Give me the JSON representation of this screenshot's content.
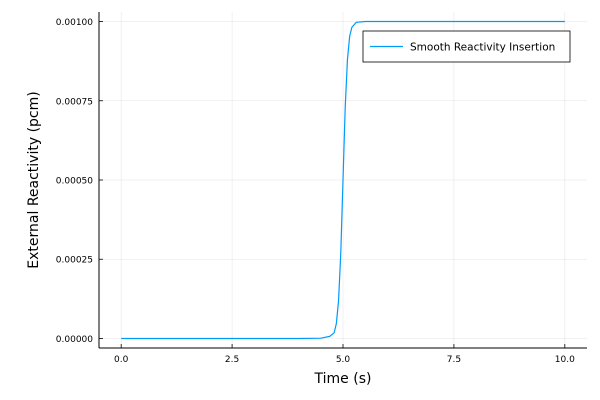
{
  "chart_data": {
    "type": "line",
    "title": "",
    "xlabel": "Time (s)",
    "ylabel": "External Reactivity (pcm)",
    "xlim": [
      -0.5,
      10.5
    ],
    "ylim": [
      -3e-05,
      0.00103
    ],
    "xticks": [
      0,
      2.5,
      5,
      7.5,
      10
    ],
    "xtick_labels": [
      "0.0",
      "2.5",
      "5.0",
      "7.5",
      "10.0"
    ],
    "yticks": [
      0,
      0.00025,
      0.0005,
      0.00075,
      0.001
    ],
    "ytick_labels": [
      "0.00000",
      "0.00025",
      "0.00050",
      "0.00075",
      "0.00100"
    ],
    "grid": true,
    "legend_position": "top-right",
    "series": [
      {
        "name": "Smooth Reactivity Insertion",
        "color": "#009AFA",
        "x": [
          0,
          1,
          2,
          3,
          4,
          4.5,
          4.7,
          4.8,
          4.85,
          4.9,
          4.95,
          5.0,
          5.05,
          5.1,
          5.15,
          5.2,
          5.3,
          5.5,
          6,
          7,
          8,
          9,
          10
        ],
        "y": [
          0,
          0,
          0,
          0,
          0,
          1e-06,
          6.7e-06,
          1.8e-05,
          4.7e-05,
          0.00012,
          0.00027,
          0.0005,
          0.00073,
          0.00088,
          0.000953,
          0.000982,
          0.0009975,
          0.00099995,
          0.001,
          0.001,
          0.001,
          0.001,
          0.001
        ]
      }
    ]
  }
}
